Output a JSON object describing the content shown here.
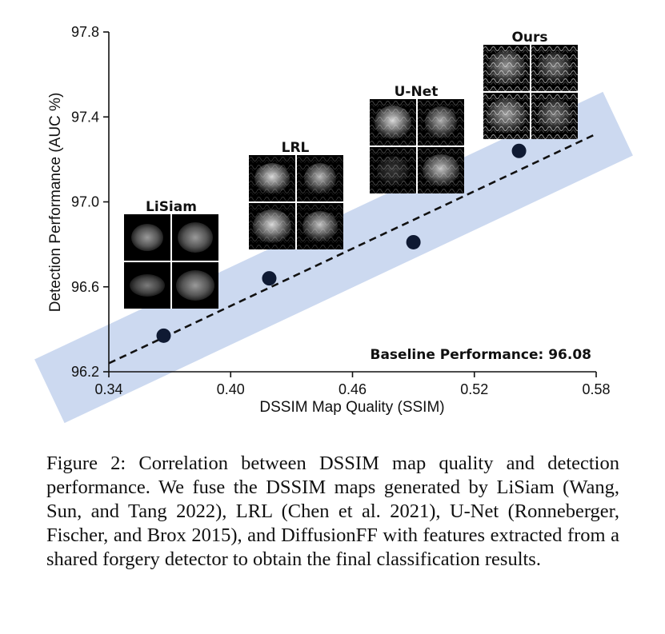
{
  "chart_data": {
    "type": "scatter",
    "xlabel": "DSSIM Map Quality (SSIM)",
    "ylabel": "Detection Performance (AUC %)",
    "xlim": [
      0.34,
      0.58
    ],
    "ylim": [
      96.2,
      97.8
    ],
    "xticks": [
      "0.34",
      "0.40",
      "0.46",
      "0.52",
      "0.58"
    ],
    "yticks": [
      "96.2",
      "96.6",
      "97.0",
      "97.4",
      "97.8"
    ],
    "points": [
      {
        "label": "LiSiam",
        "x": 0.367,
        "y": 96.37
      },
      {
        "label": "LRL",
        "x": 0.419,
        "y": 96.64
      },
      {
        "label": "U-Net",
        "x": 0.49,
        "y": 96.81
      },
      {
        "label": "Ours",
        "x": 0.542,
        "y": 97.24
      }
    ],
    "trendline": {
      "style": "dashed",
      "from": [
        0.34,
        96.24
      ],
      "to": [
        0.58,
        97.32
      ]
    },
    "band_color": "#c9d7ef",
    "marker_color": "#0f1a33",
    "annotation": "Baseline Performance: 96.08",
    "grid": false,
    "legend": "none"
  },
  "caption": "Figure 2: Correlation between DSSIM map quality and detection performance. We fuse the DSSIM maps generated by LiSiam (Wang, Sun, and Tang 2022), LRL (Chen et al. 2021), U-Net (Ronneberger, Fischer, and Brox 2015), and DiffusionFF with features extracted from a shared forgery detector to obtain the final classification results."
}
